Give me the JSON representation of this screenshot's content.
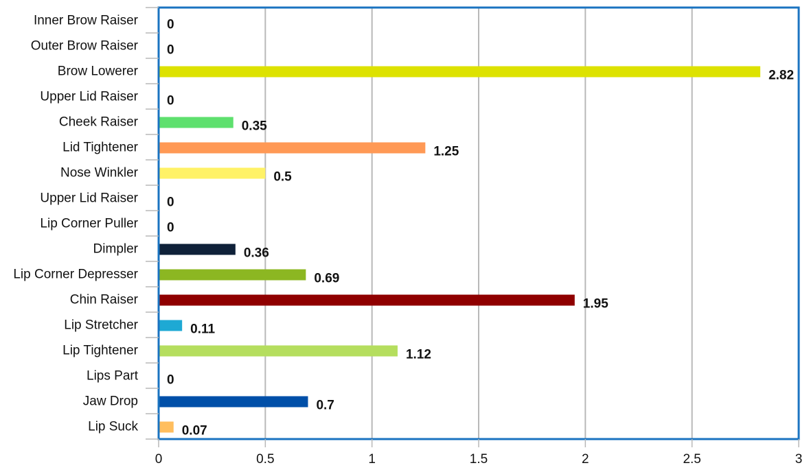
{
  "chart_data": {
    "type": "bar",
    "orientation": "horizontal",
    "categories": [
      "Inner Brow Raiser",
      "Outer Brow Raiser",
      "Brow Lowerer",
      "Upper Lid Raiser",
      "Cheek Raiser",
      "Lid Tightener",
      "Nose Winkler",
      "Upper Lid Raiser",
      "Lip Corner Puller",
      "Dimpler",
      "Lip Corner Depresser",
      "Chin Raiser",
      "Lip Stretcher",
      "Lip Tightener",
      "Lips Part",
      "Jaw Drop",
      "Lip Suck"
    ],
    "values": [
      0,
      0,
      2.82,
      0,
      0.35,
      1.25,
      0.5,
      0,
      0,
      0.36,
      0.69,
      1.95,
      0.11,
      1.12,
      0,
      0.7,
      0.07
    ],
    "value_labels": [
      "0",
      "0",
      "2.82",
      "0",
      "0.35",
      "1.25",
      "0.5",
      "0",
      "0",
      "0.36",
      "0.69",
      "1.95",
      "0.11",
      "1.12",
      "0",
      "0.7",
      "0.07"
    ],
    "colors": [
      "#ffffff",
      "#ffffff",
      "#dde200",
      "#ffffff",
      "#5ee06e",
      "#ff9955",
      "#fff266",
      "#ffffff",
      "#ffffff",
      "#0f2139",
      "#8cb722",
      "#8f0000",
      "#1ea9d4",
      "#b5de5e",
      "#ffffff",
      "#004fa8",
      "#ffbe5e"
    ],
    "xlim": [
      0,
      3
    ],
    "xticks": [
      0,
      0.5,
      1,
      1.5,
      2,
      2.5,
      3
    ],
    "xtick_labels": [
      "0",
      "0.5",
      "1",
      "1.5",
      "2",
      "2.5",
      "3"
    ],
    "grid": "vertical",
    "frame_color": "#1a73c0",
    "grid_color": "#b8b8b8",
    "title": "",
    "xlabel": "",
    "ylabel": ""
  }
}
